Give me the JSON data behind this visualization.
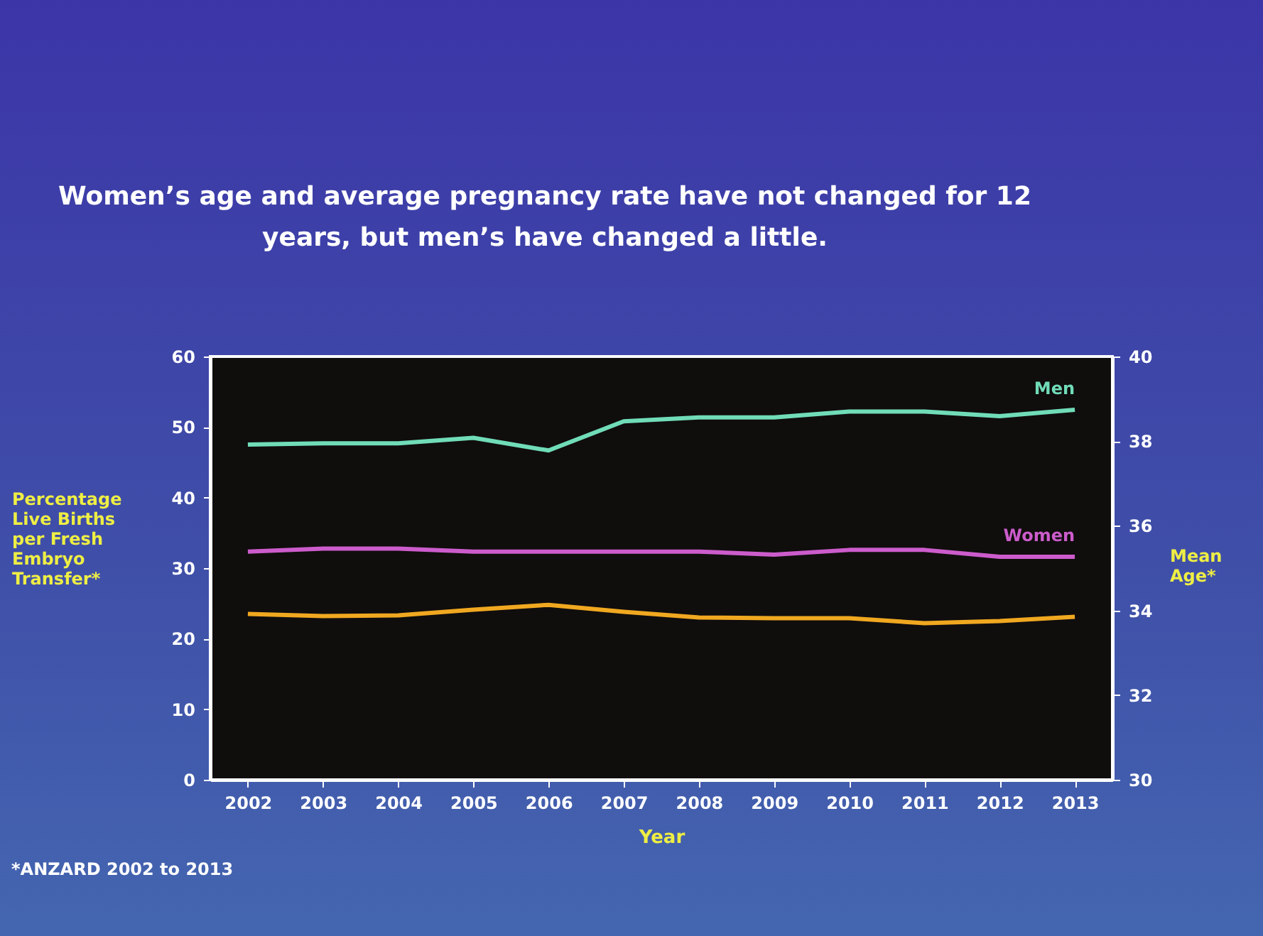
{
  "chart_data": {
    "type": "line",
    "title": "Women’s age and average pregnancy rate have not changed for 12\nyears, but men’s have changed a little.",
    "xlabel": "Year",
    "ylabel": "Percentage\nLive Births\nper Fresh\nEmbryo\nTransfer*",
    "y2label": "Mean\nAge*",
    "annotations": [
      "*ANZARD 2002 to 2013"
    ],
    "categories": [
      "2002",
      "2003",
      "2004",
      "2005",
      "2006",
      "2007",
      "2008",
      "2009",
      "2010",
      "2011",
      "2012",
      "2013"
    ],
    "series": [
      {
        "color": "#f0a820",
        "values": [
          23.5,
          23.2,
          23.3,
          24.1,
          24.8,
          23.8,
          23.0,
          22.9,
          22.9,
          22.2,
          22.5,
          23.1
        ]
      },
      {
        "name": "Men",
        "color": "#70dcb8",
        "axis": "y2",
        "values": [
          37.92,
          37.95,
          37.95,
          38.08,
          37.78,
          38.47,
          38.56,
          38.56,
          38.7,
          38.7,
          38.59,
          38.74
        ]
      },
      {
        "name": "Women",
        "color": "#cc5ccc",
        "axis": "y2",
        "values": [
          35.39,
          35.46,
          35.46,
          35.39,
          35.39,
          35.39,
          35.39,
          35.32,
          35.43,
          35.43,
          35.27,
          35.27
        ]
      }
    ],
    "ylim": [
      0,
      60
    ],
    "yticks": [
      0,
      10,
      20,
      30,
      40,
      50,
      60
    ],
    "y2lim": [
      30,
      40
    ],
    "y2ticks": [
      30,
      32,
      34,
      36,
      38,
      40
    ]
  }
}
